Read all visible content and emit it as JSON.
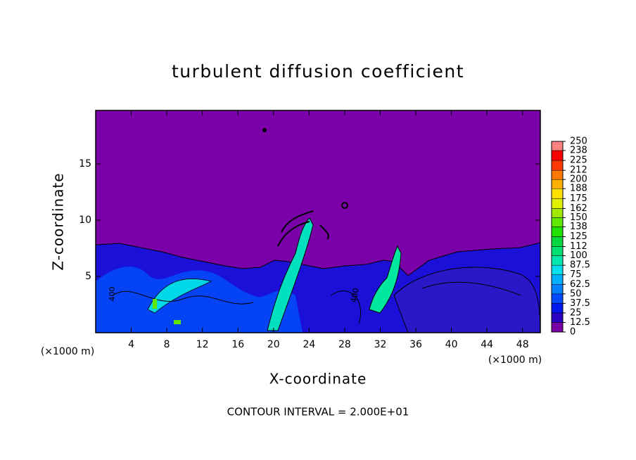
{
  "chart_data": {
    "type": "contour",
    "title": "turbulent diffusion coefficient",
    "x_label": "X-coordinate",
    "y_label": "Z-coordinate",
    "x_unit_left": "(×1000 m)",
    "x_unit_right": "(×1000 m)",
    "footer": "CONTOUR INTERVAL = 2.000E+01",
    "contour_labels": [
      "400",
      "400"
    ],
    "xlim": [
      0,
      50
    ],
    "ylim": [
      0,
      19.75
    ],
    "xticks": [
      4,
      8,
      12,
      16,
      20,
      24,
      28,
      32,
      36,
      40,
      44,
      48
    ],
    "yticks": [
      5,
      10,
      15
    ],
    "colorbar_ticks": [
      0,
      12.5,
      25,
      37.5,
      50,
      62.5,
      75,
      87.5,
      100,
      112,
      125,
      138,
      150,
      162,
      175,
      188,
      200,
      212,
      225,
      238,
      250
    ],
    "colorbar_colors": [
      "#7a00a8",
      "#2c00c0",
      "#0018f0",
      "#0048ff",
      "#0080ff",
      "#00b0ff",
      "#00e0f0",
      "#00e8b0",
      "#00e070",
      "#00d840",
      "#20e000",
      "#60e800",
      "#a0e800",
      "#e0f000",
      "#ffe000",
      "#ffb000",
      "#ff7800",
      "#ff3800",
      "#ff0000",
      "#ff8080"
    ]
  }
}
